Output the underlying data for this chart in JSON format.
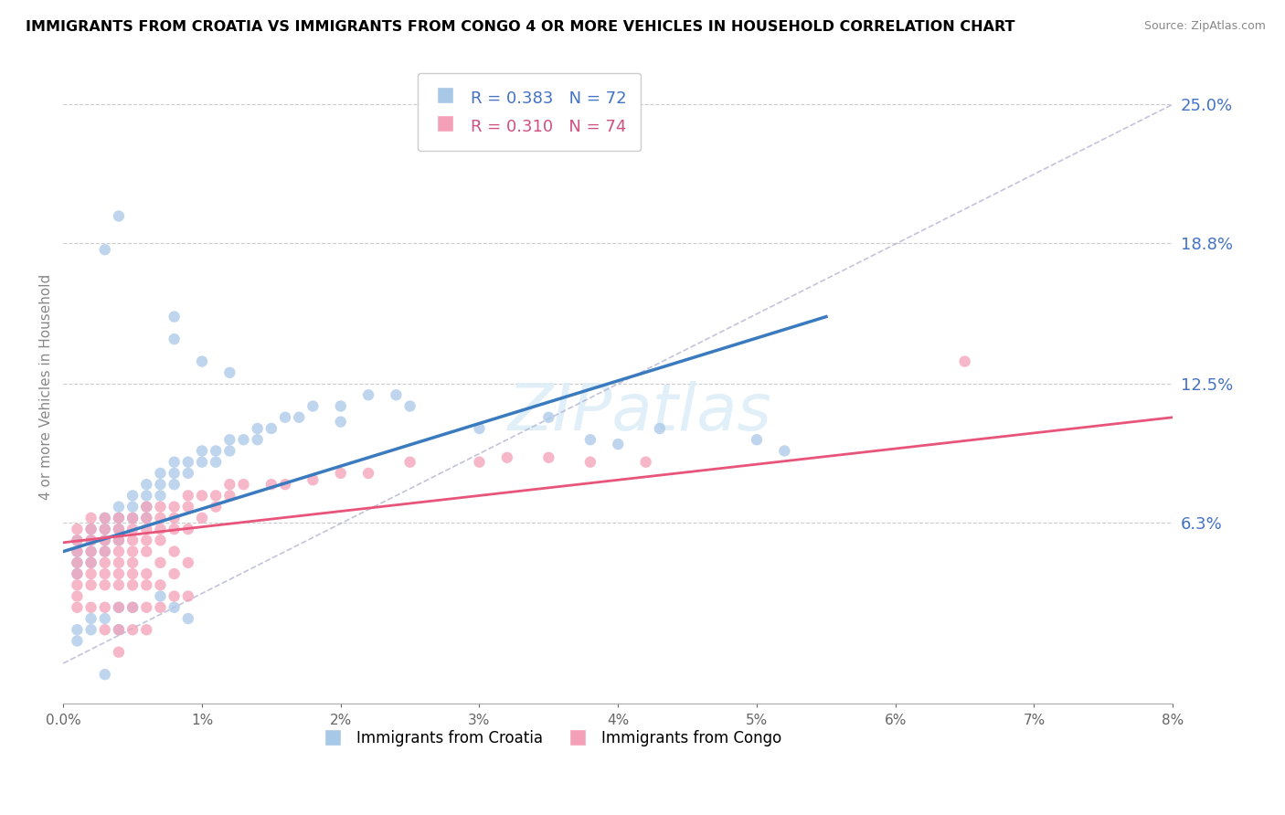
{
  "title": "IMMIGRANTS FROM CROATIA VS IMMIGRANTS FROM CONGO 4 OR MORE VEHICLES IN HOUSEHOLD CORRELATION CHART",
  "source": "Source: ZipAtlas.com",
  "ylabel": "4 or more Vehicles in Household",
  "yticks": [
    0.0,
    0.063,
    0.125,
    0.188,
    0.25
  ],
  "ytick_labels": [
    "",
    "6.3%",
    "12.5%",
    "18.8%",
    "25.0%"
  ],
  "xlim": [
    0.0,
    0.08
  ],
  "ylim": [
    -0.018,
    0.265
  ],
  "croatia_color": "#a8c8e8",
  "congo_color": "#f4a0b8",
  "trend_croatia_color": "#3a7abf",
  "trend_congo_color": "#e8547a",
  "croatia_trend_x": [
    0.0,
    0.055
  ],
  "croatia_trend_y": [
    0.05,
    0.155
  ],
  "congo_trend_x": [
    0.0,
    0.08
  ],
  "congo_trend_y": [
    0.054,
    0.11
  ],
  "ref_line_x": [
    0.0,
    0.08
  ],
  "ref_line_y": [
    0.0,
    0.25
  ],
  "watermark_text": "ZIPatlas",
  "croatia_scatter": [
    [
      0.001,
      0.05
    ],
    [
      0.001,
      0.055
    ],
    [
      0.001,
      0.045
    ],
    [
      0.001,
      0.04
    ],
    [
      0.002,
      0.06
    ],
    [
      0.002,
      0.055
    ],
    [
      0.002,
      0.05
    ],
    [
      0.002,
      0.045
    ],
    [
      0.003,
      0.065
    ],
    [
      0.003,
      0.06
    ],
    [
      0.003,
      0.055
    ],
    [
      0.003,
      0.05
    ],
    [
      0.004,
      0.07
    ],
    [
      0.004,
      0.065
    ],
    [
      0.004,
      0.06
    ],
    [
      0.004,
      0.055
    ],
    [
      0.005,
      0.075
    ],
    [
      0.005,
      0.07
    ],
    [
      0.005,
      0.065
    ],
    [
      0.006,
      0.08
    ],
    [
      0.006,
      0.075
    ],
    [
      0.006,
      0.07
    ],
    [
      0.006,
      0.065
    ],
    [
      0.007,
      0.085
    ],
    [
      0.007,
      0.08
    ],
    [
      0.007,
      0.075
    ],
    [
      0.008,
      0.09
    ],
    [
      0.008,
      0.085
    ],
    [
      0.008,
      0.08
    ],
    [
      0.009,
      0.09
    ],
    [
      0.009,
      0.085
    ],
    [
      0.01,
      0.095
    ],
    [
      0.01,
      0.09
    ],
    [
      0.011,
      0.095
    ],
    [
      0.011,
      0.09
    ],
    [
      0.012,
      0.1
    ],
    [
      0.012,
      0.095
    ],
    [
      0.013,
      0.1
    ],
    [
      0.014,
      0.105
    ],
    [
      0.014,
      0.1
    ],
    [
      0.015,
      0.105
    ],
    [
      0.016,
      0.11
    ],
    [
      0.017,
      0.11
    ],
    [
      0.018,
      0.115
    ],
    [
      0.02,
      0.115
    ],
    [
      0.022,
      0.12
    ],
    [
      0.024,
      0.12
    ],
    [
      0.003,
      0.185
    ],
    [
      0.004,
      0.2
    ],
    [
      0.008,
      0.155
    ],
    [
      0.008,
      0.145
    ],
    [
      0.01,
      0.135
    ],
    [
      0.012,
      0.13
    ],
    [
      0.02,
      0.108
    ],
    [
      0.025,
      0.115
    ],
    [
      0.03,
      0.105
    ],
    [
      0.035,
      0.11
    ],
    [
      0.038,
      0.1
    ],
    [
      0.04,
      0.098
    ],
    [
      0.043,
      0.105
    ],
    [
      0.05,
      0.1
    ],
    [
      0.052,
      0.095
    ],
    [
      0.001,
      0.015
    ],
    [
      0.001,
      0.01
    ],
    [
      0.002,
      0.02
    ],
    [
      0.002,
      0.015
    ],
    [
      0.003,
      0.02
    ],
    [
      0.003,
      -0.005
    ],
    [
      0.004,
      0.025
    ],
    [
      0.004,
      0.015
    ],
    [
      0.005,
      0.025
    ],
    [
      0.007,
      0.03
    ],
    [
      0.008,
      0.025
    ],
    [
      0.009,
      0.02
    ]
  ],
  "congo_scatter": [
    [
      0.001,
      0.06
    ],
    [
      0.001,
      0.055
    ],
    [
      0.001,
      0.05
    ],
    [
      0.001,
      0.045
    ],
    [
      0.001,
      0.04
    ],
    [
      0.001,
      0.035
    ],
    [
      0.001,
      0.03
    ],
    [
      0.001,
      0.025
    ],
    [
      0.002,
      0.065
    ],
    [
      0.002,
      0.06
    ],
    [
      0.002,
      0.055
    ],
    [
      0.002,
      0.05
    ],
    [
      0.002,
      0.045
    ],
    [
      0.002,
      0.04
    ],
    [
      0.002,
      0.035
    ],
    [
      0.002,
      0.025
    ],
    [
      0.003,
      0.065
    ],
    [
      0.003,
      0.06
    ],
    [
      0.003,
      0.055
    ],
    [
      0.003,
      0.05
    ],
    [
      0.003,
      0.045
    ],
    [
      0.003,
      0.04
    ],
    [
      0.003,
      0.035
    ],
    [
      0.003,
      0.025
    ],
    [
      0.003,
      0.015
    ],
    [
      0.004,
      0.065
    ],
    [
      0.004,
      0.06
    ],
    [
      0.004,
      0.055
    ],
    [
      0.004,
      0.05
    ],
    [
      0.004,
      0.045
    ],
    [
      0.004,
      0.04
    ],
    [
      0.004,
      0.035
    ],
    [
      0.004,
      0.025
    ],
    [
      0.004,
      0.015
    ],
    [
      0.004,
      0.005
    ],
    [
      0.005,
      0.065
    ],
    [
      0.005,
      0.06
    ],
    [
      0.005,
      0.055
    ],
    [
      0.005,
      0.05
    ],
    [
      0.005,
      0.045
    ],
    [
      0.005,
      0.04
    ],
    [
      0.005,
      0.035
    ],
    [
      0.005,
      0.025
    ],
    [
      0.005,
      0.015
    ],
    [
      0.006,
      0.07
    ],
    [
      0.006,
      0.065
    ],
    [
      0.006,
      0.06
    ],
    [
      0.006,
      0.055
    ],
    [
      0.006,
      0.05
    ],
    [
      0.006,
      0.04
    ],
    [
      0.006,
      0.035
    ],
    [
      0.006,
      0.025
    ],
    [
      0.006,
      0.015
    ],
    [
      0.007,
      0.07
    ],
    [
      0.007,
      0.065
    ],
    [
      0.007,
      0.06
    ],
    [
      0.007,
      0.055
    ],
    [
      0.007,
      0.045
    ],
    [
      0.007,
      0.035
    ],
    [
      0.007,
      0.025
    ],
    [
      0.008,
      0.07
    ],
    [
      0.008,
      0.065
    ],
    [
      0.008,
      0.06
    ],
    [
      0.008,
      0.05
    ],
    [
      0.008,
      0.04
    ],
    [
      0.008,
      0.03
    ],
    [
      0.009,
      0.075
    ],
    [
      0.009,
      0.07
    ],
    [
      0.009,
      0.06
    ],
    [
      0.009,
      0.045
    ],
    [
      0.009,
      0.03
    ],
    [
      0.01,
      0.075
    ],
    [
      0.01,
      0.065
    ],
    [
      0.011,
      0.075
    ],
    [
      0.011,
      0.07
    ],
    [
      0.012,
      0.08
    ],
    [
      0.012,
      0.075
    ],
    [
      0.013,
      0.08
    ],
    [
      0.015,
      0.08
    ],
    [
      0.016,
      0.08
    ],
    [
      0.018,
      0.082
    ],
    [
      0.02,
      0.085
    ],
    [
      0.022,
      0.085
    ],
    [
      0.025,
      0.09
    ],
    [
      0.03,
      0.09
    ],
    [
      0.032,
      0.092
    ],
    [
      0.035,
      0.092
    ],
    [
      0.038,
      0.09
    ],
    [
      0.042,
      0.09
    ],
    [
      0.065,
      0.135
    ]
  ]
}
